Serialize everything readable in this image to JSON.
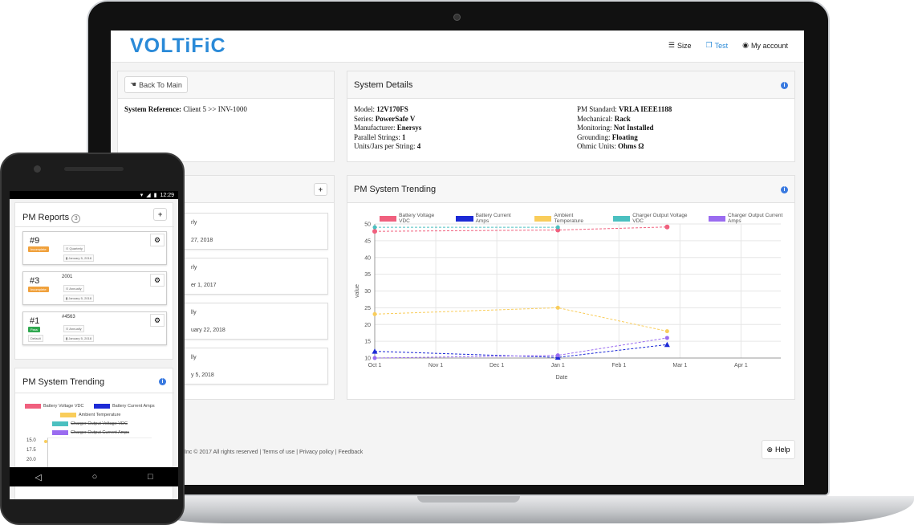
{
  "app": {
    "logo": "VOLTiFiC"
  },
  "nav": {
    "size": "Size",
    "test": "Test",
    "account": "My account"
  },
  "back_button": "Back To Main",
  "system_reference": {
    "label": "System Reference:",
    "value": "Client 5 >> INV-1000"
  },
  "system_details": {
    "title": "System Details",
    "left": [
      {
        "label": "Model:",
        "value": "12V170FS"
      },
      {
        "label": "Series:",
        "value": "PowerSafe V"
      },
      {
        "label": "Manufacturer:",
        "value": "Enersys"
      },
      {
        "label": "Parallel Strings:",
        "value": "1"
      },
      {
        "label": "Units/Jars per String:",
        "value": "4"
      }
    ],
    "right": [
      {
        "label": "PM Standard:",
        "value": "VRLA IEEE1188"
      },
      {
        "label": "Mechanical:",
        "value": "Rack"
      },
      {
        "label": "Monitoring:",
        "value": "Not Installed"
      },
      {
        "label": "Grounding:",
        "value": "Floating"
      },
      {
        "label": "Ohmic Units:",
        "value": "Ohms Ω"
      }
    ]
  },
  "reports_peek": [
    {
      "l1": "rly",
      "l2": "27, 2018"
    },
    {
      "l1": "rly",
      "l2": "er 1, 2017"
    },
    {
      "l1": "lly",
      "l2": "uary 22, 2018"
    },
    {
      "l1": "lly",
      "l2": "y 5, 2018"
    }
  ],
  "add_label": "+",
  "trending": {
    "title": "PM System Trending"
  },
  "footer": {
    "copyright": "Inc © 2017 All rights reserved",
    "terms": "Terms of use",
    "privacy": "Privacy policy",
    "feedback": "Feedback",
    "sep": "|"
  },
  "help": "Help",
  "colors": {
    "voltage": "#f0607e",
    "current": "#1c2ad6",
    "ambient": "#f9cd5b",
    "charger_v": "#4bc0c0",
    "charger_a": "#9a6cf0",
    "accent": "#2a8ad8"
  },
  "chart_data": {
    "type": "line",
    "xlabel": "Date",
    "ylabel": "value",
    "ylim": [
      10,
      50
    ],
    "yticks": [
      10,
      15,
      20,
      25,
      30,
      35,
      40,
      45,
      50
    ],
    "xticks": [
      "Oct 1",
      "Nov 1",
      "Dec 1",
      "Jan 1",
      "Feb 1",
      "Mar 1",
      "Apr 1"
    ],
    "grid": true,
    "legend": "top",
    "series": [
      {
        "name": "Battery Voltage VDC",
        "color": "#f0607e",
        "points": [
          [
            "Oct 1",
            47.8
          ],
          [
            "Jan 1",
            48.2
          ],
          [
            "Mar 1",
            49.1
          ]
        ]
      },
      {
        "name": "Battery Current Amps",
        "color": "#1c2ad6",
        "points": [
          [
            "Oct 1",
            12.0
          ],
          [
            "Jan 1",
            10.2
          ],
          [
            "Mar 1",
            14.0
          ]
        ]
      },
      {
        "name": "Ambient Temperature",
        "color": "#f9cd5b",
        "points": [
          [
            "Oct 1",
            23.1
          ],
          [
            "Jan 1",
            25.0
          ],
          [
            "Mar 1",
            18.0
          ]
        ]
      },
      {
        "name": "Charger Output Voltage VDC",
        "color": "#4bc0c0",
        "points": [
          [
            "Oct 1",
            49.0
          ],
          [
            "Jan 1",
            49.0
          ]
        ]
      },
      {
        "name": "Charger Output Current Amps",
        "color": "#9a6cf0",
        "points": [
          [
            "Oct 1",
            10.0
          ],
          [
            "Jan 1",
            10.8
          ],
          [
            "Mar 1",
            16.0
          ]
        ]
      }
    ]
  },
  "phone": {
    "time": "12:29",
    "reports_title": "PM Reports",
    "reports_count": "3",
    "add_label": "+",
    "reports": [
      {
        "num": "#9",
        "badge": "Incomplete",
        "badge_color": "#f0a13c",
        "sub": "",
        "freq": "Quarterly",
        "date": "January 5, 2018",
        "extra": ""
      },
      {
        "num": "#3",
        "badge": "Incomplete",
        "badge_color": "#f0a13c",
        "sub": "2001",
        "freq": "Annually",
        "date": "January 5, 2018",
        "extra": ""
      },
      {
        "num": "#1",
        "badge": "Pass",
        "badge_color": "#2fa84f",
        "sub": "#4563",
        "freq": "Annually",
        "date": "January 5, 2018",
        "extra": "Default"
      }
    ],
    "trending_title": "PM System Trending",
    "legend": [
      {
        "label": "Battery Voltage VDC",
        "color": "#f0607e"
      },
      {
        "label": "Battery Current Amps",
        "color": "#1c2ad6"
      },
      {
        "label": "Ambient Temperature",
        "color": "#f9cd5b"
      },
      {
        "label": "Charger Output Voltage VDC",
        "color": "#4bc0c0"
      },
      {
        "label": "Charger Output Current Amps",
        "color": "#9a6cf0"
      }
    ],
    "yticks": [
      "15.0",
      "17.5",
      "20.0"
    ],
    "nav_back": "◁",
    "nav_home": "○",
    "nav_recent": "□"
  }
}
